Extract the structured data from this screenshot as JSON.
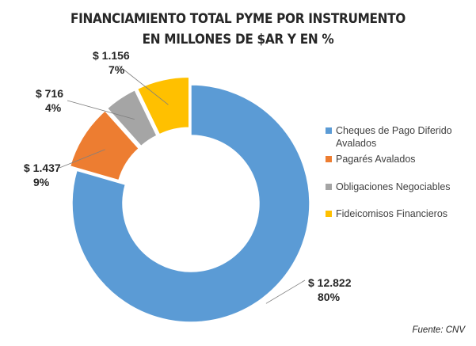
{
  "chart_data": {
    "type": "pie",
    "variant": "donut",
    "title_lines": [
      "FINANCIAMIENTO TOTAL PYME POR INSTRUMENTO",
      "EN MILLONES DE $AR Y EN %"
    ],
    "legend_position": "right",
    "slices": [
      {
        "name": "Cheques de Pago Diferido Avalados",
        "value": 12822,
        "value_label": "$ 12.822",
        "percent": 80,
        "percent_label": "80%",
        "color": "#5B9BD5",
        "exploded": false
      },
      {
        "name": "Pagarés Avalados",
        "value": 1437,
        "value_label": "$ 1.437",
        "percent": 9,
        "percent_label": "9%",
        "color": "#ED7D31",
        "exploded": true
      },
      {
        "name": "Obligaciones Negociables",
        "value": 716,
        "value_label": "$ 716",
        "percent": 4,
        "percent_label": "4%",
        "color": "#A5A5A5",
        "exploded": true
      },
      {
        "name": "Fideicomisos Financieros",
        "value": 1156,
        "value_label": "$ 1.156",
        "percent": 7,
        "percent_label": "7%",
        "color": "#FFC000",
        "exploded": true
      }
    ],
    "legend": [
      "Cheques de Pago Diferido Avalados",
      "Pagarés Avalados",
      "Obligaciones Negociables",
      "Fideicomisos Financieros"
    ],
    "source": "Fuente: CNV"
  }
}
